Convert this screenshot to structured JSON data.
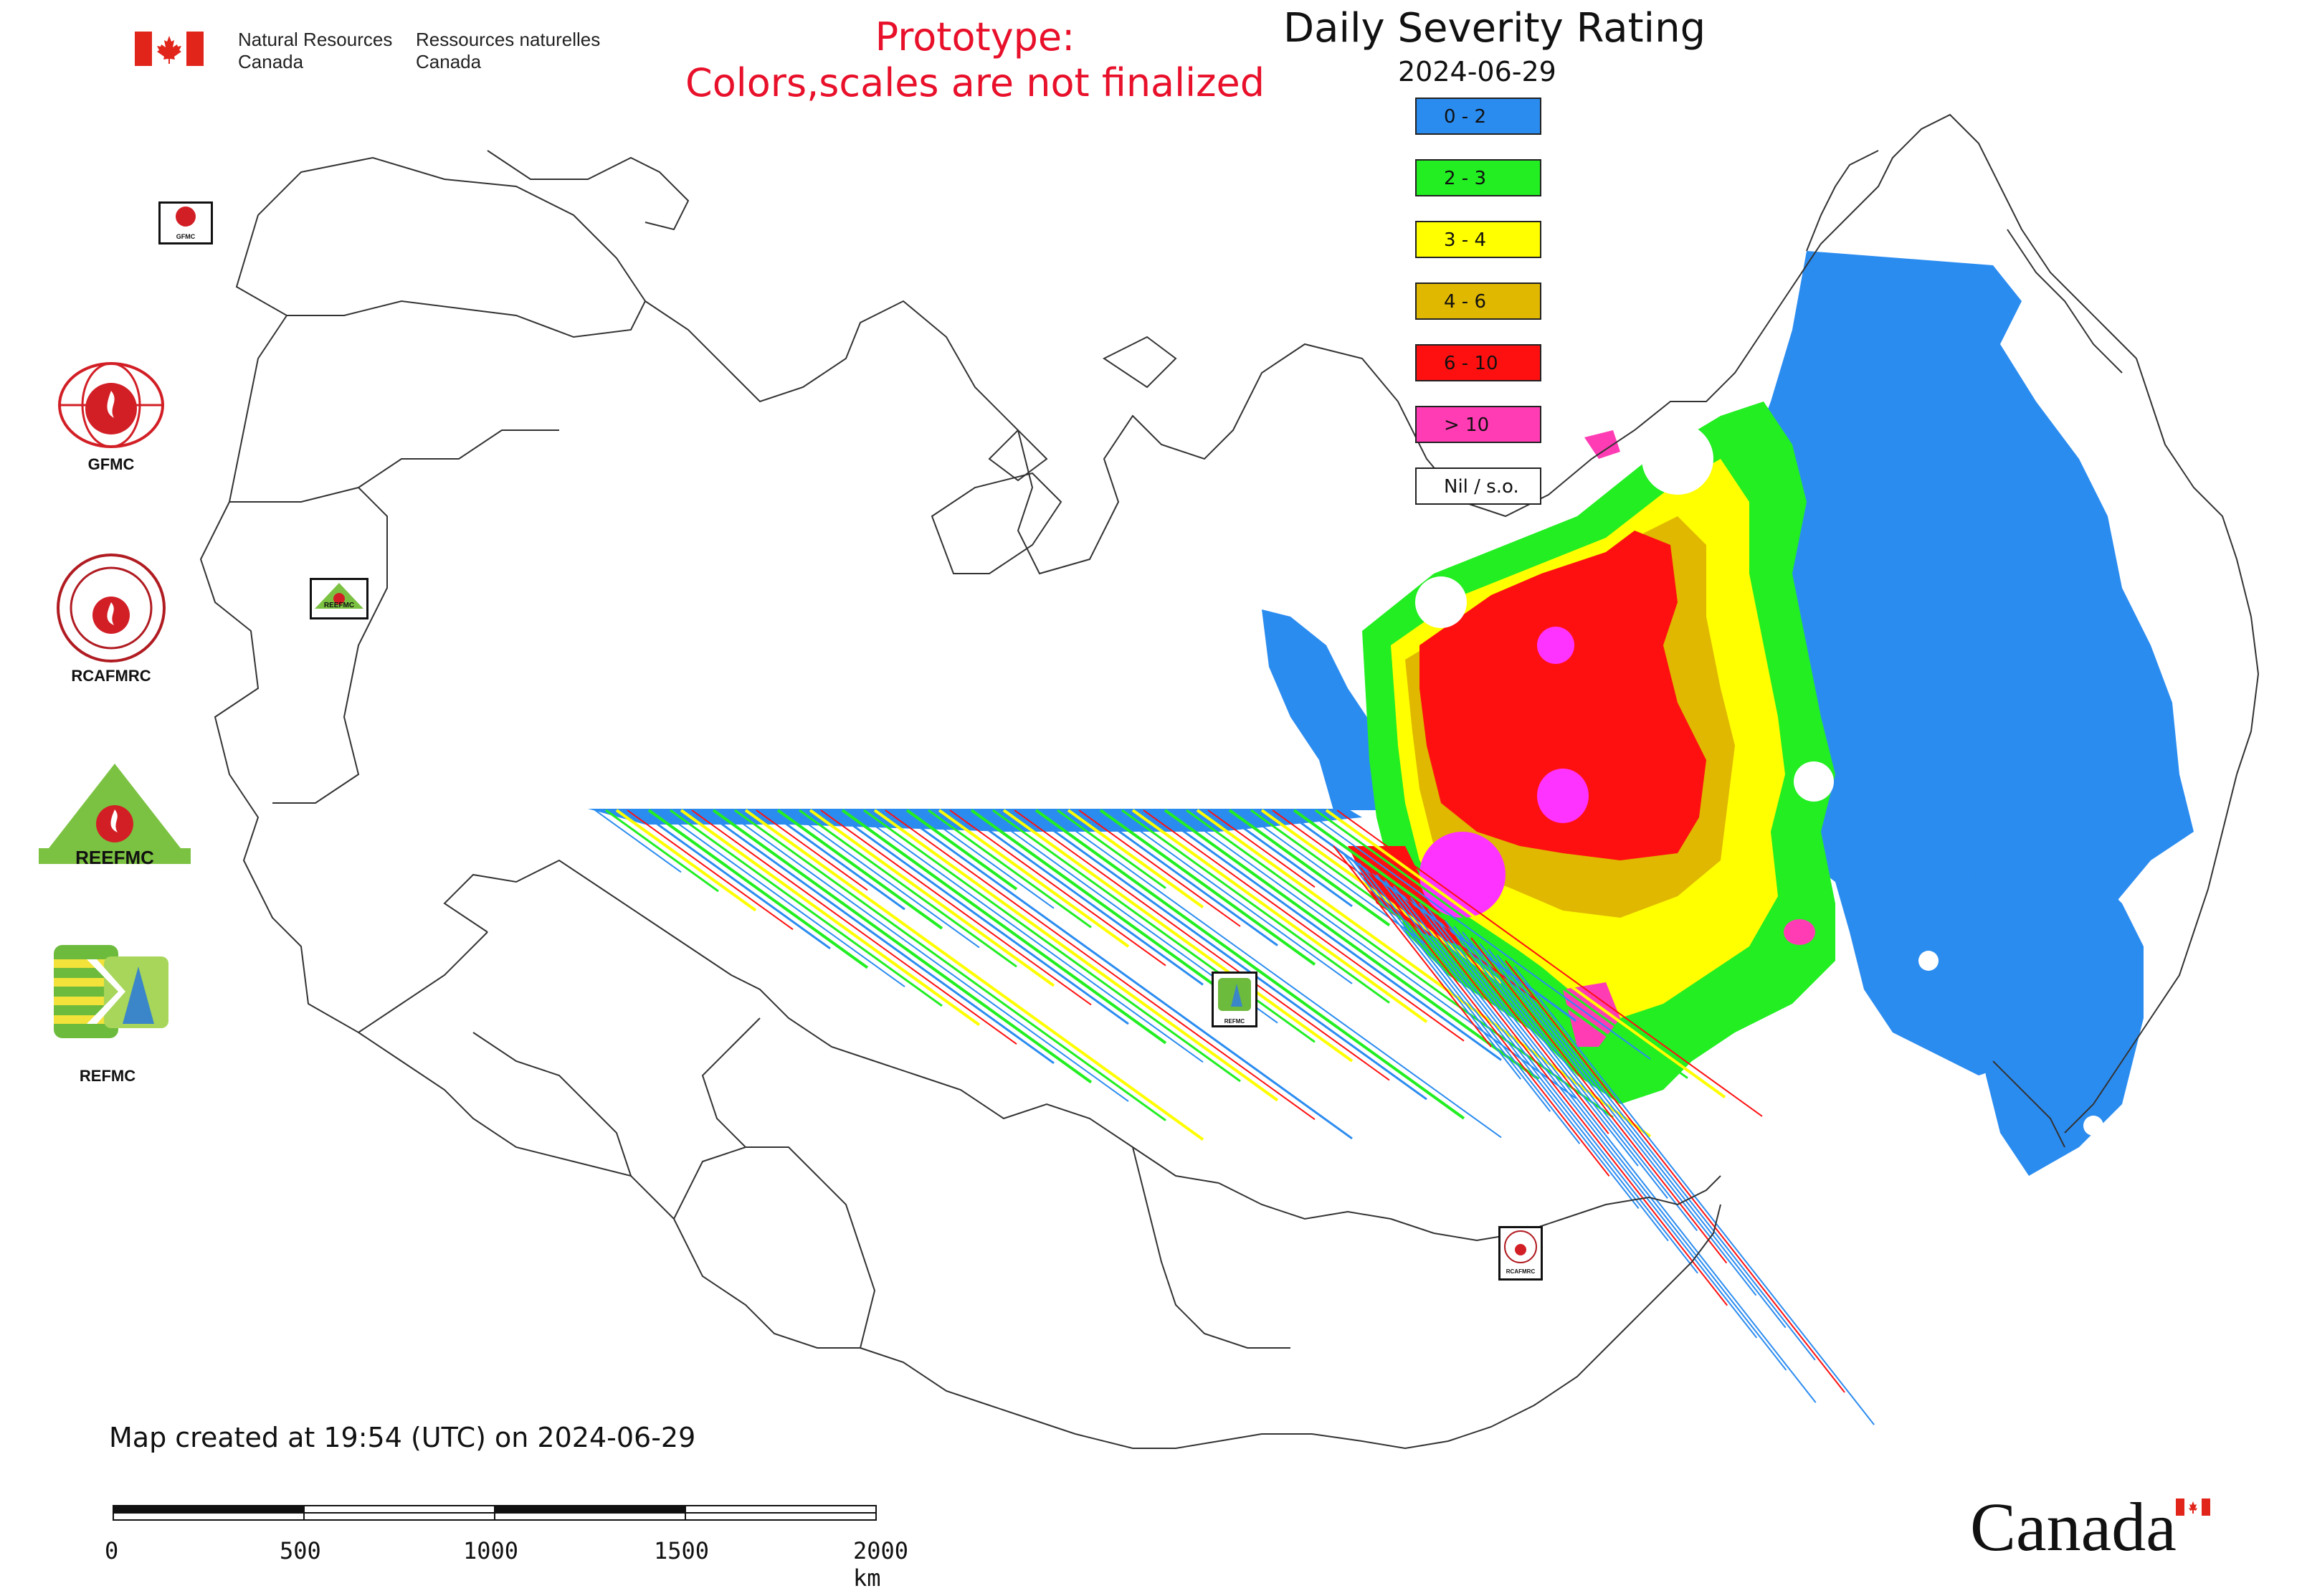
{
  "header": {
    "department_en_line1": "Natural Resources",
    "department_en_line2": "Canada",
    "department_fr_line1": "Ressources naturelles",
    "department_fr_line2": "Canada",
    "prototype_line1": "Prototype:",
    "prototype_line2": "Colors,scales are not finalized"
  },
  "map": {
    "title": "Daily Severity Rating",
    "date": "2024-06-29",
    "legend": [
      {
        "label": "0 - 2",
        "color": "#2b8cf0"
      },
      {
        "label": "2 - 3",
        "color": "#22ee22"
      },
      {
        "label": "3 - 4",
        "color": "#ffff00"
      },
      {
        "label": "4 - 6",
        "color": "#e0b800"
      },
      {
        "label": "6 - 10",
        "color": "#ff1010"
      },
      {
        "label": "> 10",
        "color": "#ff3cb4"
      },
      {
        "label": "Nil / s.o.",
        "color": "#ffffff"
      }
    ],
    "fill_colors": {
      "low": "#2b8cf0",
      "moderate": "#22ee22",
      "high": "#ffff00",
      "very_high": "#e0b800",
      "extreme": "#ff1010",
      "severe": "#ff3cb4",
      "peak": "#ff33ff"
    }
  },
  "logos": [
    {
      "label": "GFMC",
      "icon": "gfmc-logo"
    },
    {
      "label": "RCAFMRC",
      "icon": "rcafmrc-logo"
    },
    {
      "label": "REEFMC",
      "icon": "reefmc-logo"
    },
    {
      "label": "REFMC",
      "icon": "refmc-logo"
    }
  ],
  "map_markers": [
    {
      "label": "GFMC"
    },
    {
      "label": "REEFMC"
    },
    {
      "label": "REFMC"
    },
    {
      "label": "RCAFMRC"
    }
  ],
  "footer": {
    "created": "Map created at 19:54 (UTC) on 2024-06-29",
    "scale_labels": [
      "0",
      "500",
      "1000",
      "1500",
      "2000 km"
    ],
    "wordmark": "Canada"
  }
}
